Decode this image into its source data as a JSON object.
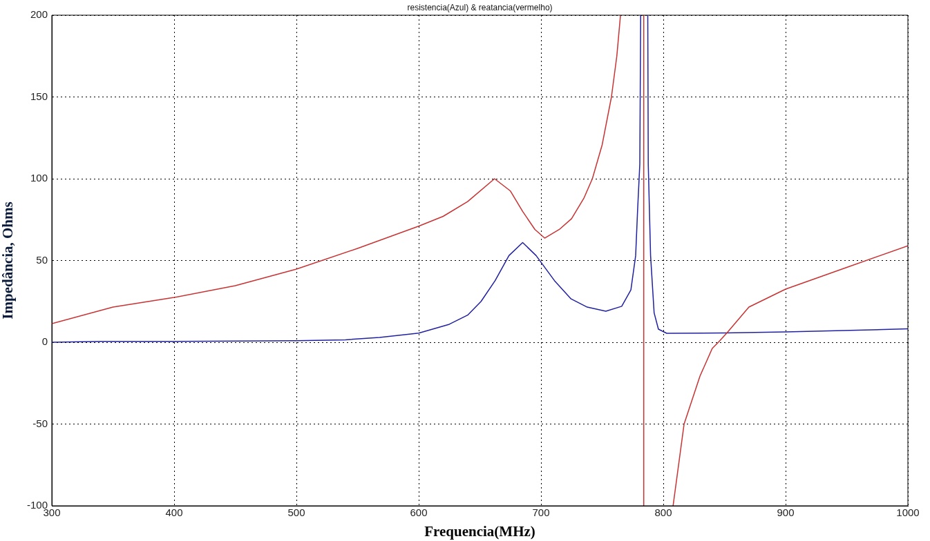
{
  "chart_data": {
    "type": "line",
    "title": "resistencia(Azul) & reatancia(vermelho)",
    "xlabel": "Frequencia(MHz)",
    "ylabel": "Impedância, Ohms",
    "xlim": [
      300,
      1000
    ],
    "ylim": [
      -100,
      200
    ],
    "xticks": [
      300,
      400,
      500,
      600,
      700,
      800,
      900,
      1000
    ],
    "yticks": [
      -100,
      -50,
      0,
      50,
      100,
      150,
      200
    ],
    "grid": true,
    "series": [
      {
        "color": "#c83232",
        "x": [
          300,
          350,
          400,
          450,
          500,
          550,
          600,
          620,
          640,
          662,
          675,
          685,
          695,
          703,
          715,
          725,
          735,
          742,
          750,
          757.6,
          762,
          765,
          765.1,
          784,
          784,
          784.1,
          808,
          817,
          830,
          840,
          845,
          852,
          870,
          900,
          950,
          1000
        ],
        "values": [
          11.4,
          21.5,
          27.4,
          34.6,
          44.7,
          57.4,
          71,
          77,
          86,
          100,
          92.5,
          80,
          69,
          63.7,
          69,
          75.6,
          88,
          100,
          120.7,
          150,
          175,
          200,
          null,
          200,
          -100,
          null,
          -100,
          -50,
          -20.7,
          -3.8,
          0,
          5.7,
          21.5,
          32.5,
          45.8,
          59
        ]
      },
      {
        "color": "#2020a0",
        "x": [
          300,
          340,
          400,
          500,
          540,
          568,
          600,
          625,
          640,
          651,
          662.5,
          673.8,
          685,
          696,
          711,
          724.6,
          737.8,
          753,
          766,
          773.5,
          777.4,
          779,
          780.8,
          781.5,
          781.6,
          787.3,
          787.7,
          789.6,
          792.5,
          796,
          802.8,
          850,
          900,
          1000
        ],
        "values": [
          0,
          0.5,
          0.5,
          1,
          1.5,
          3,
          5.6,
          11,
          16.6,
          25,
          37.7,
          53,
          61,
          53,
          37.7,
          26.5,
          21.5,
          19,
          22,
          32,
          53,
          81,
          109,
          200,
          null,
          200,
          109,
          53,
          18,
          8,
          5.5,
          5.7,
          6.3,
          8.2
        ]
      }
    ]
  }
}
